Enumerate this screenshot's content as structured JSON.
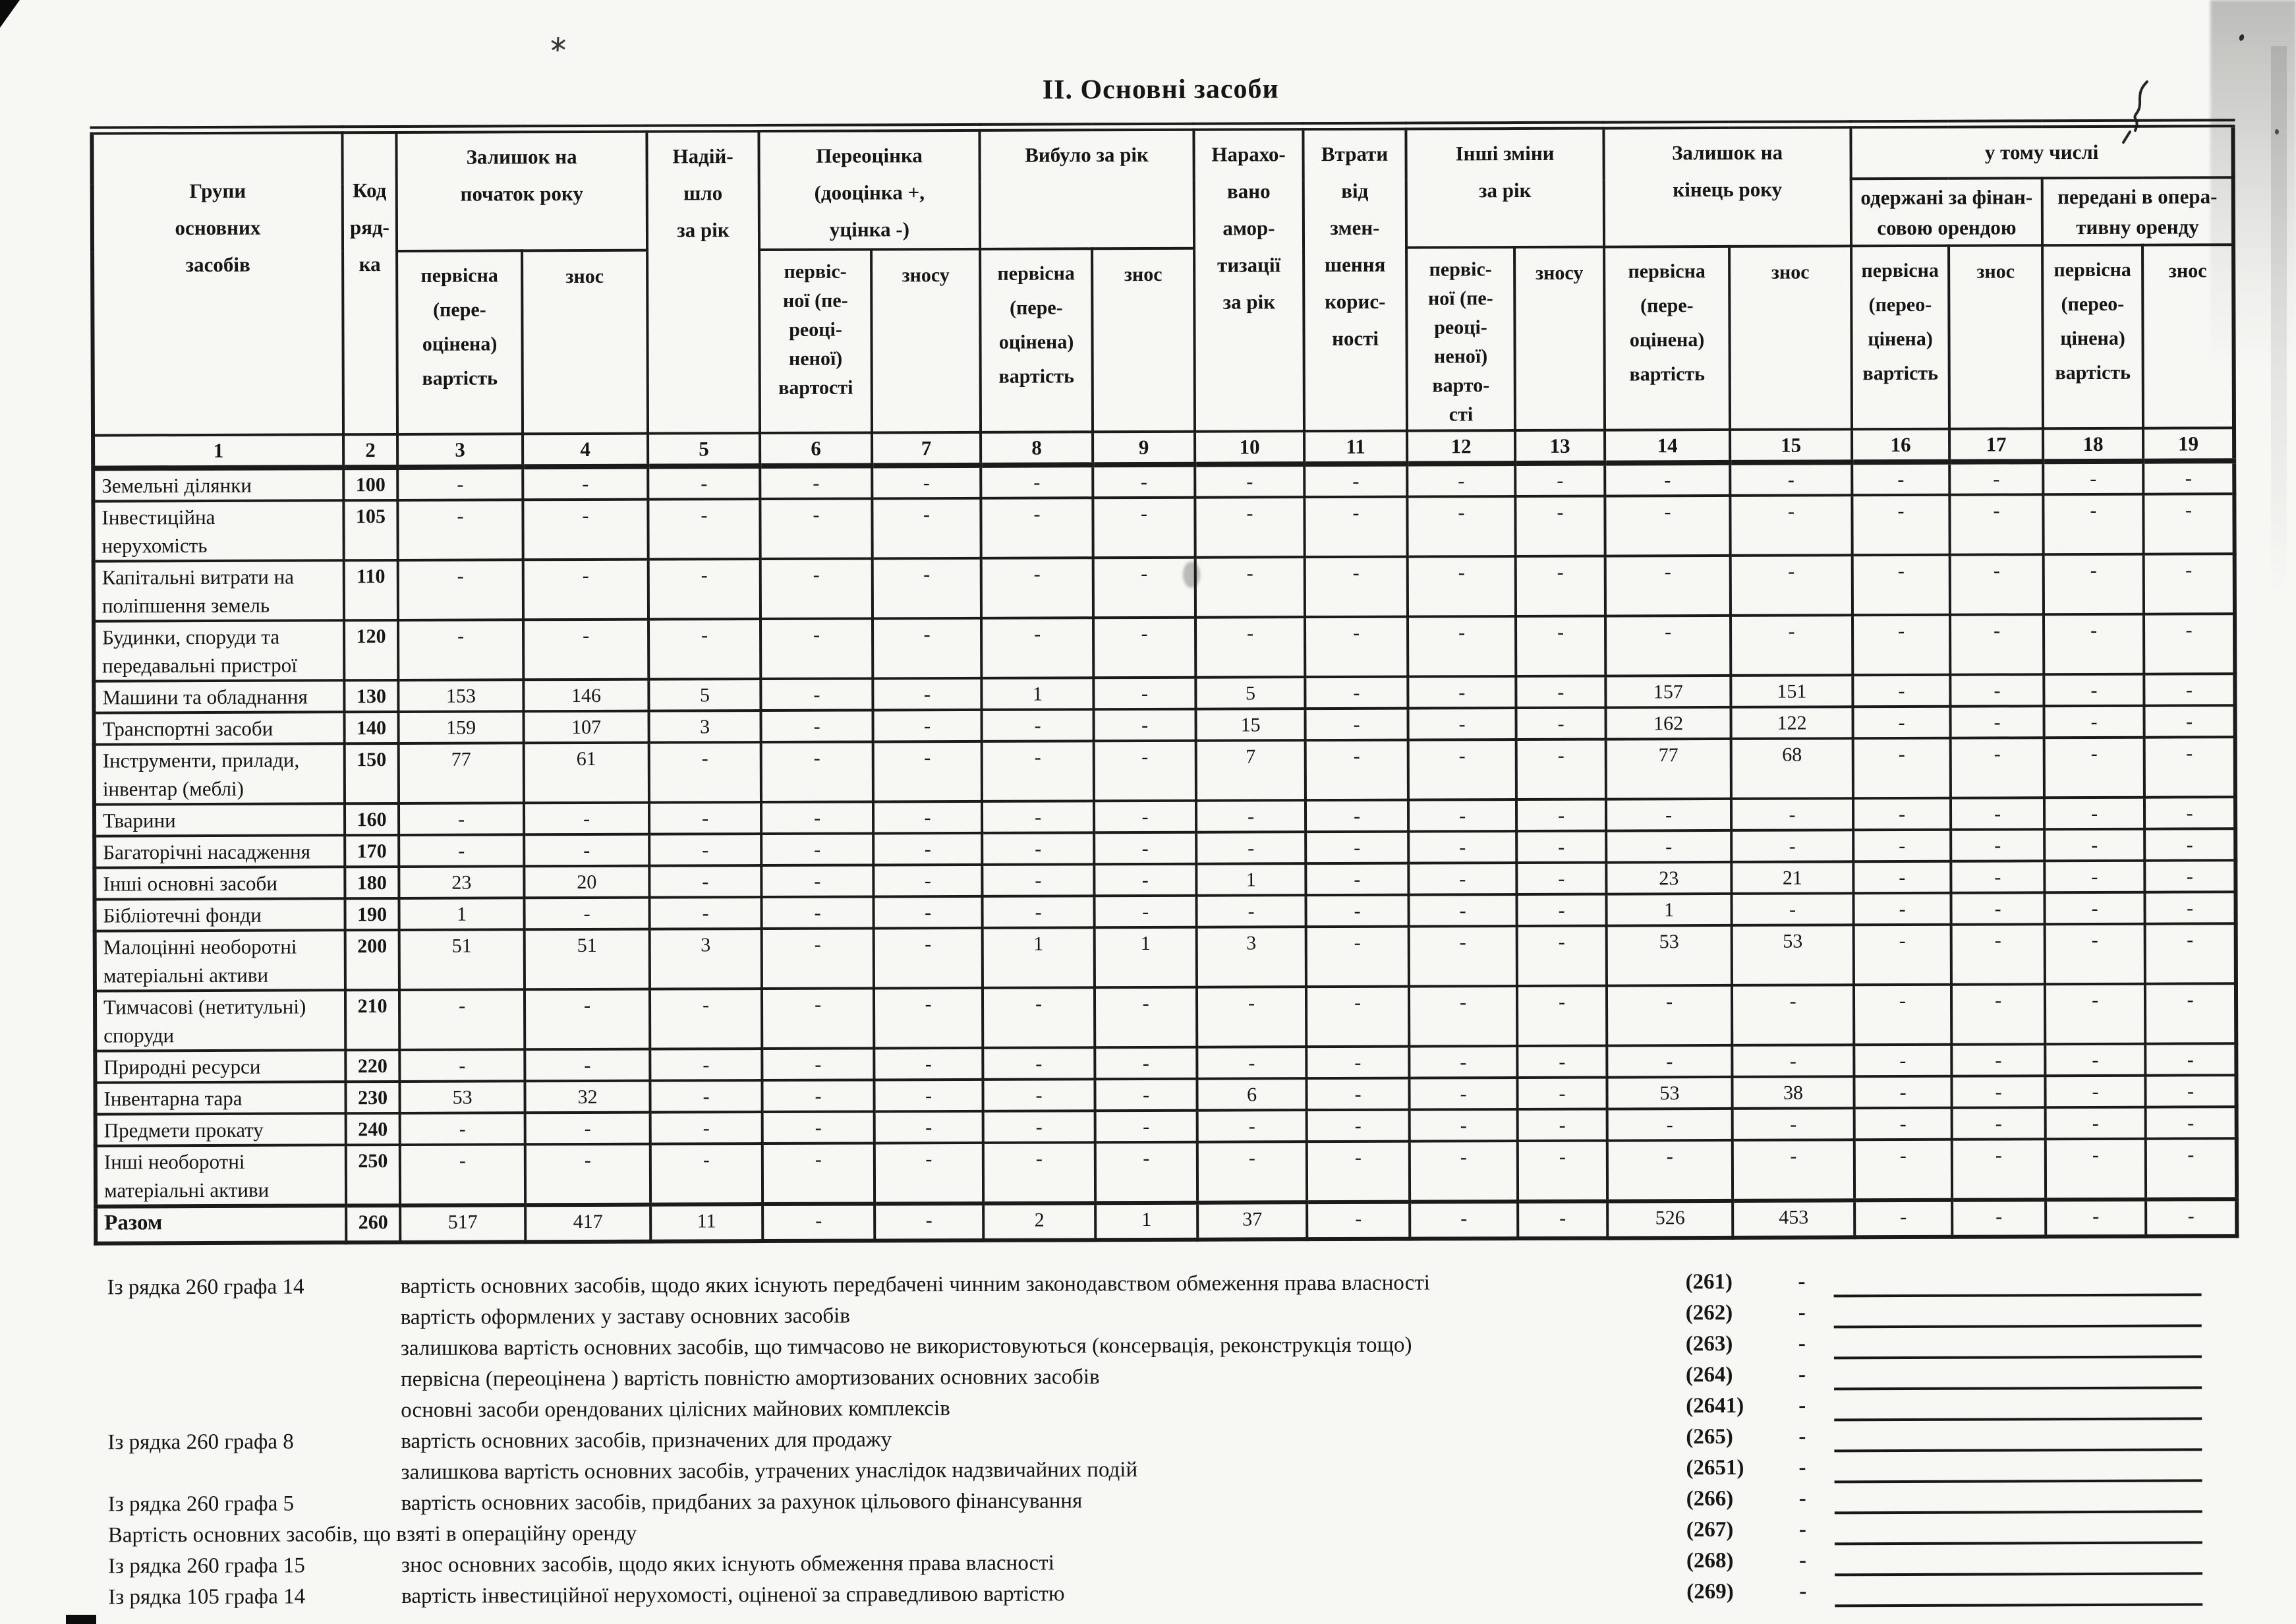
{
  "title": "ІІ. Основні засоби",
  "colors": {
    "paper": "#f7f7f4",
    "ink": "#1b1b1b"
  },
  "table": {
    "header": {
      "groups": "Групи\nосновних\nзасобів",
      "code": "Код\nряд-\nка",
      "opening": "Залишок на\nпочаток року",
      "received": "Надій-\nшло\nза рік",
      "revaluation": "Переоцінка\n(дооцінка +,\nуцінка -)",
      "disposed": "Вибуло за рік",
      "depreciation": "Нарахо-\nвано\nамор-\nтизації\nза рік",
      "impairment": "Втрати\nвід\nзмен-\nшення\nкорис-\nності",
      "other_changes": "Інші зміни\nза рік",
      "closing": "Залишок на\nкінець року",
      "including": "у тому числі",
      "finance_lease": "одержані за фінан-\nсовою орендою",
      "operating_lease": "передані в опера-\nтивну оренду"
    },
    "subheaders": [
      {
        "col": 3,
        "text": "первісна\n(пере-\nоцінена)\nвартість"
      },
      {
        "col": 4,
        "text": "знос"
      },
      {
        "col": 6,
        "text": "первіс-\nної (пе-\nреоці-\nненої)\nвартості"
      },
      {
        "col": 7,
        "text": "зносу"
      },
      {
        "col": 8,
        "text": "первісна\n(пере-\nоцінена)\nвартість"
      },
      {
        "col": 9,
        "text": "знос"
      },
      {
        "col": 12,
        "text": "первіс-\nної (пе-\nреоці-\nненої)\nварто-\nсті"
      },
      {
        "col": 13,
        "text": "зносу"
      },
      {
        "col": 14,
        "text": "первісна\n(пере-\nоцінена)\nвартість"
      },
      {
        "col": 15,
        "text": "знос"
      },
      {
        "col": 16,
        "text": "первісна\n(перео-\nцінена)\nвартість"
      },
      {
        "col": 17,
        "text": "знос"
      },
      {
        "col": 18,
        "text": "первісна\n(перео-\nцінена)\nвартість"
      },
      {
        "col": 19,
        "text": "знос"
      }
    ],
    "column_numbers": [
      "1",
      "2",
      "3",
      "4",
      "5",
      "6",
      "7",
      "8",
      "9",
      "10",
      "11",
      "12",
      "13",
      "14",
      "15",
      "16",
      "17",
      "18",
      "19"
    ],
    "rows": [
      {
        "label": "Земельні ділянки",
        "code": "100",
        "tall": false,
        "values": [
          "-",
          "-",
          "-",
          "-",
          "-",
          "-",
          "-",
          "-",
          "-",
          "-",
          "-",
          "-",
          "-",
          "-",
          "-",
          "-",
          "-"
        ]
      },
      {
        "label": "Інвестиційна\nнерухомість",
        "code": "105",
        "tall": true,
        "values": [
          "-",
          "-",
          "-",
          "-",
          "-",
          "-",
          "-",
          "-",
          "-",
          "-",
          "-",
          "-",
          "-",
          "-",
          "-",
          "-",
          "-"
        ]
      },
      {
        "label": "Капітальні витрати на\nполіпшення земель",
        "code": "110",
        "tall": true,
        "values": [
          "-",
          "-",
          "-",
          "-",
          "-",
          "-",
          "-",
          "-",
          "-",
          "-",
          "-",
          "-",
          "-",
          "-",
          "-",
          "-",
          "-"
        ]
      },
      {
        "label": "Будинки, споруди та\nпередавальні пристрої",
        "code": "120",
        "tall": true,
        "values": [
          "-",
          "-",
          "-",
          "-",
          "-",
          "-",
          "-",
          "-",
          "-",
          "-",
          "-",
          "-",
          "-",
          "-",
          "-",
          "-",
          "-"
        ]
      },
      {
        "label": "Машини та обладнання",
        "code": "130",
        "tall": false,
        "values": [
          "153",
          "146",
          "5",
          "-",
          "-",
          "1",
          "-",
          "5",
          "-",
          "-",
          "-",
          "157",
          "151",
          "-",
          "-",
          "-",
          "-"
        ]
      },
      {
        "label": "Транспортні засоби",
        "code": "140",
        "tall": false,
        "values": [
          "159",
          "107",
          "3",
          "-",
          "-",
          "-",
          "-",
          "15",
          "-",
          "-",
          "-",
          "162",
          "122",
          "-",
          "-",
          "-",
          "-"
        ]
      },
      {
        "label": "Інструменти, прилади,\nінвентар (меблі)",
        "code": "150",
        "tall": true,
        "values": [
          "77",
          "61",
          "-",
          "-",
          "-",
          "-",
          "-",
          "7",
          "-",
          "-",
          "-",
          "77",
          "68",
          "-",
          "-",
          "-",
          "-"
        ]
      },
      {
        "label": "Тварини",
        "code": "160",
        "tall": false,
        "values": [
          "-",
          "-",
          "-",
          "-",
          "-",
          "-",
          "-",
          "-",
          "-",
          "-",
          "-",
          "-",
          "-",
          "-",
          "-",
          "-",
          "-"
        ]
      },
      {
        "label": "Багаторічні насадження",
        "code": "170",
        "tall": false,
        "values": [
          "-",
          "-",
          "-",
          "-",
          "-",
          "-",
          "-",
          "-",
          "-",
          "-",
          "-",
          "-",
          "-",
          "-",
          "-",
          "-",
          "-"
        ]
      },
      {
        "label": "Інші основні засоби",
        "code": "180",
        "tall": false,
        "values": [
          "23",
          "20",
          "-",
          "-",
          "-",
          "-",
          "-",
          "1",
          "-",
          "-",
          "-",
          "23",
          "21",
          "-",
          "-",
          "-",
          "-"
        ]
      },
      {
        "label": "Бібліотечні фонди",
        "code": "190",
        "tall": false,
        "values": [
          "1",
          "-",
          "-",
          "-",
          "-",
          "-",
          "-",
          "-",
          "-",
          "-",
          "-",
          "1",
          "-",
          "-",
          "-",
          "-",
          "-"
        ]
      },
      {
        "label": "Малоцінні необоротні\nматеріальні активи",
        "code": "200",
        "tall": true,
        "values": [
          "51",
          "51",
          "3",
          "-",
          "-",
          "1",
          "1",
          "3",
          "-",
          "-",
          "-",
          "53",
          "53",
          "-",
          "-",
          "-",
          "-"
        ]
      },
      {
        "label": "Тимчасові (нетитульні)\nспоруди",
        "code": "210",
        "tall": true,
        "values": [
          "-",
          "-",
          "-",
          "-",
          "-",
          "-",
          "-",
          "-",
          "-",
          "-",
          "-",
          "-",
          "-",
          "-",
          "-",
          "-",
          "-"
        ]
      },
      {
        "label": "Природні  ресурси",
        "code": "220",
        "tall": false,
        "values": [
          "-",
          "-",
          "-",
          "-",
          "-",
          "-",
          "-",
          "-",
          "-",
          "-",
          "-",
          "-",
          "-",
          "-",
          "-",
          "-",
          "-"
        ]
      },
      {
        "label": "Інвентарна тара",
        "code": "230",
        "tall": false,
        "values": [
          "53",
          "32",
          "-",
          "-",
          "-",
          "-",
          "-",
          "6",
          "-",
          "-",
          "-",
          "53",
          "38",
          "-",
          "-",
          "-",
          "-"
        ]
      },
      {
        "label": "Предмети прокату",
        "code": "240",
        "tall": false,
        "values": [
          "-",
          "-",
          "-",
          "-",
          "-",
          "-",
          "-",
          "-",
          "-",
          "-",
          "-",
          "-",
          "-",
          "-",
          "-",
          "-",
          "-"
        ]
      },
      {
        "label": "Інші необоротні\nматеріальні активи",
        "code": "250",
        "tall": true,
        "values": [
          "-",
          "-",
          "-",
          "-",
          "-",
          "-",
          "-",
          "-",
          "-",
          "-",
          "-",
          "-",
          "-",
          "-",
          "-",
          "-",
          "-"
        ]
      },
      {
        "label": "Разом",
        "code": "260",
        "tall": false,
        "total": true,
        "values": [
          "517",
          "417",
          "11",
          "-",
          "-",
          "2",
          "1",
          "37",
          "-",
          "-",
          "-",
          "526",
          "453",
          "-",
          "-",
          "-",
          "-"
        ]
      }
    ]
  },
  "footnotes": [
    {
      "prefix": "Із рядка 260 графа 14",
      "text": "вартість основних засобів, щодо яких існують передбачені чинним законодавством обмеження права власності",
      "code": "(261)",
      "value": "-"
    },
    {
      "prefix": "",
      "text": "вартість оформлених у заставу основних засобів",
      "code": "(262)",
      "value": "-"
    },
    {
      "prefix": "",
      "text": "залишкова вартість основних засобів, що тимчасово не використовуються  (консервація, реконструкція тощо)",
      "code": "(263)",
      "value": "-"
    },
    {
      "prefix": "",
      "text": "первісна (переоцінена )  вартість повністю амортизованих основних засобів",
      "code": "(264)",
      "value": "-"
    },
    {
      "prefix": "",
      "text": "основні засоби орендованих цілісних майнових комплексів",
      "code": "(2641)",
      "value": "-"
    },
    {
      "prefix": "Із рядка 260  графа 8",
      "text": "вартість основних засобів, призначених для продажу",
      "code": "(265)",
      "value": "-"
    },
    {
      "prefix": "",
      "text": "залишкова вартість основних засобів, утрачених унаслідок надзвичайних подій",
      "code": "(2651)",
      "value": "-"
    },
    {
      "prefix": "Із рядка 260  графа 5",
      "text": "вартість основних засобів, придбаних за рахунок цільового фінансування",
      "code": "(266)",
      "value": "-"
    },
    {
      "prefix": "",
      "text": "Вартість основних засобів, що взяті в операційну оренду",
      "code": "(267)",
      "value": "-",
      "flush": true
    },
    {
      "prefix": "Із рядка 260  графа 15",
      "text": "знос основних засобів, щодо яких існують обмеження права власності",
      "code": "(268)",
      "value": "-"
    },
    {
      "prefix": "Із рядка 105  графа 14",
      "text": "вартість інвестиційної нерухомості, оціненої за справедливою вартістю",
      "code": "(269)",
      "value": "-"
    }
  ]
}
